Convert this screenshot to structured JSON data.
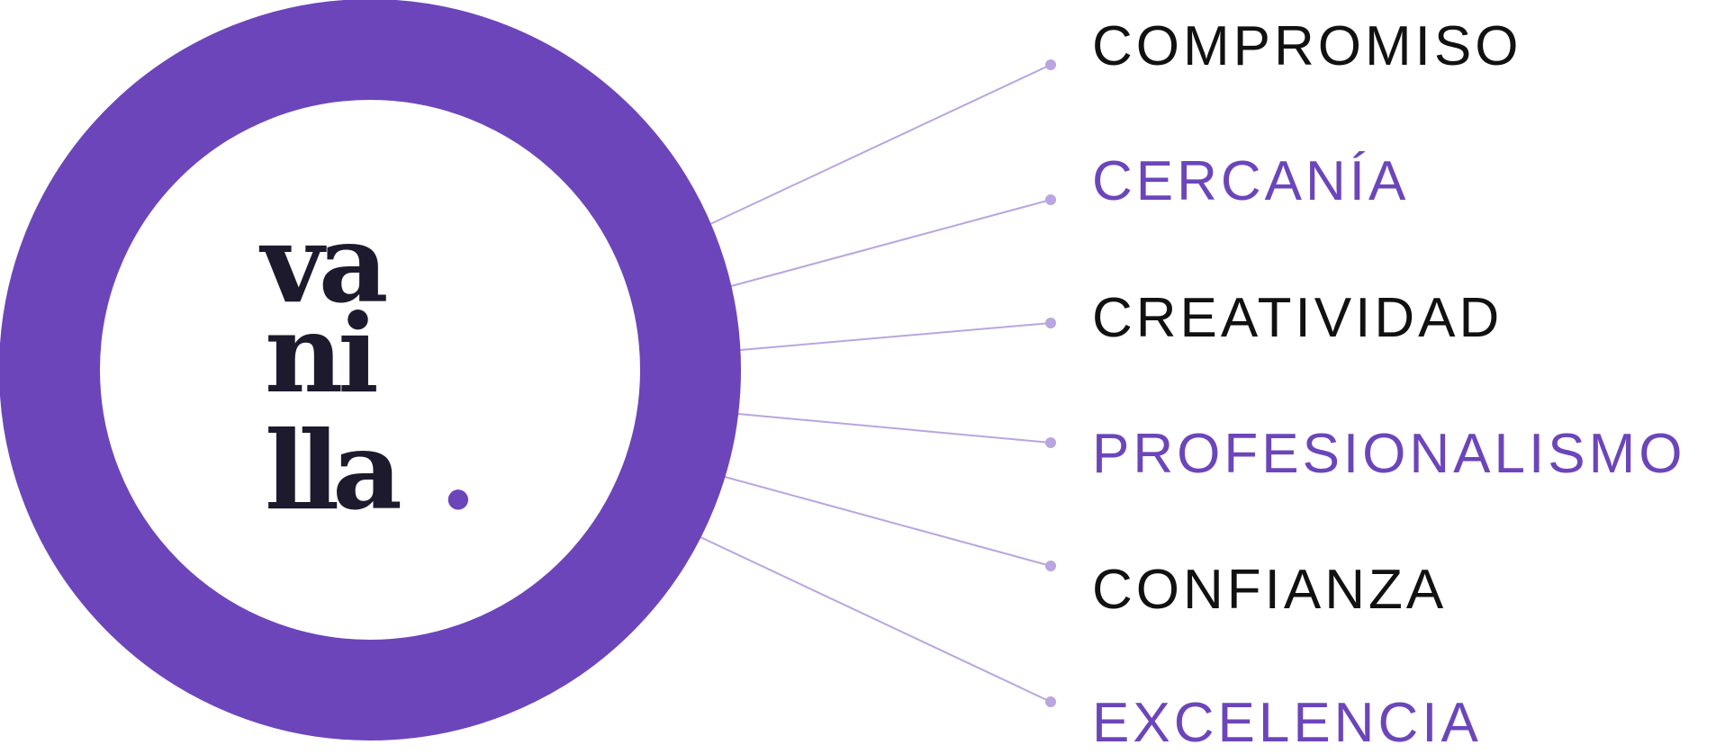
{
  "logo": {
    "lines": [
      "va",
      "ni",
      "lla"
    ],
    "dot": ".",
    "ring_color": "#6c45bb",
    "text_color": "#1d1a2d",
    "dot_color": "#6c45bb"
  },
  "connector_color": "#b9a5df",
  "values": [
    {
      "label": "COMPROMISO",
      "color": "#111111"
    },
    {
      "label": "CERCANÍA",
      "color": "#6c45bb"
    },
    {
      "label": "CREATIVIDAD",
      "color": "#111111"
    },
    {
      "label": "PROFESIONALISMO",
      "color": "#6c45bb"
    },
    {
      "label": "CONFIANZA",
      "color": "#111111"
    },
    {
      "label": "EXCELENCIA",
      "color": "#6c45bb"
    }
  ]
}
